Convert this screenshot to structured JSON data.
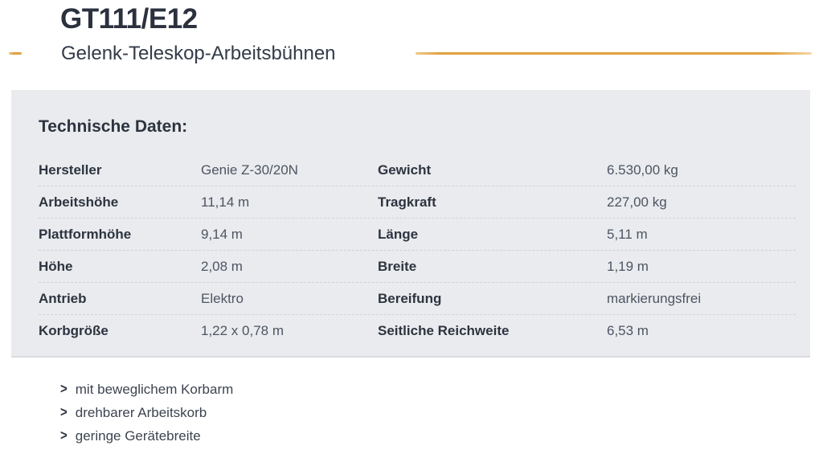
{
  "page": {
    "title": "GT111/E12",
    "subtitle": "Gelenk-Teleskop-Arbeitsbühnen"
  },
  "colors": {
    "accent_orange": "#e2a240",
    "heading_dark": "#2d3440",
    "value_gray": "#4d5563",
    "panel_background": "#e9ebee"
  },
  "specs": {
    "heading": "Technische Daten:",
    "rows": [
      {
        "left_label": "Hersteller",
        "left_value": "Genie Z-30/20N",
        "right_label": "Gewicht",
        "right_value": "6.530,00 kg"
      },
      {
        "left_label": "Arbeitshöhe",
        "left_value": "11,14 m",
        "right_label": "Tragkraft",
        "right_value": "227,00 kg"
      },
      {
        "left_label": "Plattformhöhe",
        "left_value": "9,14 m",
        "right_label": "Länge",
        "right_value": "5,11 m"
      },
      {
        "left_label": "Höhe",
        "left_value": "2,08 m",
        "right_label": "Breite",
        "right_value": "1,19 m"
      },
      {
        "left_label": "Antrieb",
        "left_value": "Elektro",
        "right_label": "Bereifung",
        "right_value": "markierungsfrei"
      },
      {
        "left_label": "Korbgröße",
        "left_value": "1,22 x 0,78 m",
        "right_label": "Seitliche Reichweite",
        "right_value": "6,53 m"
      }
    ]
  },
  "features": {
    "bullet_glyph": ">",
    "items": [
      "mit beweglichem Korbarm",
      "drehbarer Arbeitskorb",
      "geringe Gerätebreite"
    ]
  }
}
